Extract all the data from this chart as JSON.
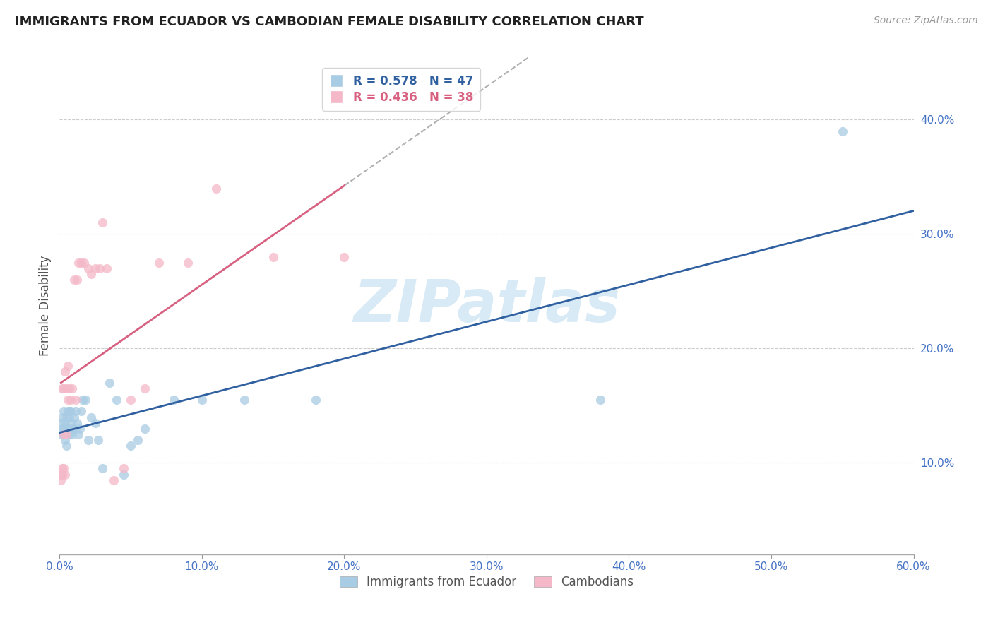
{
  "title": "IMMIGRANTS FROM ECUADOR VS CAMBODIAN FEMALE DISABILITY CORRELATION CHART",
  "source": "Source: ZipAtlas.com",
  "ylabel": "Female Disability",
  "legend_label1": "Immigrants from Ecuador",
  "legend_label2": "Cambodians",
  "R1": 0.578,
  "N1": 47,
  "R2": 0.436,
  "N2": 38,
  "color_ecuador": "#a8cce4",
  "color_cambodian": "#f4b8c8",
  "color_ecuador_line": "#3060a0",
  "color_cambodian_line": "#d86080",
  "ecuador_x": [
    0.001,
    0.001,
    0.002,
    0.002,
    0.003,
    0.003,
    0.003,
    0.004,
    0.004,
    0.005,
    0.005,
    0.005,
    0.006,
    0.006,
    0.007,
    0.007,
    0.007,
    0.008,
    0.008,
    0.009,
    0.009,
    0.01,
    0.01,
    0.011,
    0.012,
    0.013,
    0.014,
    0.015,
    0.016,
    0.018,
    0.02,
    0.022,
    0.025,
    0.027,
    0.03,
    0.035,
    0.04,
    0.045,
    0.05,
    0.055,
    0.06,
    0.08,
    0.1,
    0.13,
    0.18,
    0.38,
    0.55
  ],
  "ecuador_y": [
    0.135,
    0.125,
    0.13,
    0.14,
    0.125,
    0.13,
    0.145,
    0.12,
    0.135,
    0.115,
    0.13,
    0.14,
    0.13,
    0.145,
    0.14,
    0.145,
    0.125,
    0.135,
    0.145,
    0.125,
    0.13,
    0.13,
    0.14,
    0.145,
    0.135,
    0.125,
    0.13,
    0.145,
    0.155,
    0.155,
    0.12,
    0.14,
    0.135,
    0.12,
    0.095,
    0.17,
    0.155,
    0.09,
    0.115,
    0.12,
    0.13,
    0.155,
    0.155,
    0.155,
    0.155,
    0.155,
    0.39
  ],
  "cambodian_x": [
    0.001,
    0.001,
    0.002,
    0.002,
    0.002,
    0.003,
    0.003,
    0.003,
    0.004,
    0.004,
    0.005,
    0.005,
    0.006,
    0.006,
    0.007,
    0.008,
    0.009,
    0.01,
    0.011,
    0.012,
    0.013,
    0.015,
    0.017,
    0.02,
    0.022,
    0.025,
    0.028,
    0.03,
    0.033,
    0.038,
    0.045,
    0.05,
    0.06,
    0.07,
    0.09,
    0.11,
    0.15,
    0.2
  ],
  "cambodian_y": [
    0.085,
    0.09,
    0.09,
    0.095,
    0.165,
    0.095,
    0.125,
    0.165,
    0.09,
    0.18,
    0.125,
    0.165,
    0.155,
    0.185,
    0.165,
    0.155,
    0.165,
    0.26,
    0.155,
    0.26,
    0.275,
    0.275,
    0.275,
    0.27,
    0.265,
    0.27,
    0.27,
    0.31,
    0.27,
    0.085,
    0.095,
    0.155,
    0.165,
    0.275,
    0.275,
    0.34,
    0.28,
    0.28
  ],
  "xlim": [
    0.0,
    0.6
  ],
  "ylim": [
    0.02,
    0.455
  ],
  "yticks_right": [
    0.1,
    0.2,
    0.3,
    0.4
  ],
  "ytick_labels_right": [
    "10.0%",
    "20.0%",
    "30.0%",
    "40.0%"
  ],
  "xticks": [
    0.0,
    0.1,
    0.2,
    0.3,
    0.4,
    0.5,
    0.6
  ],
  "xtick_labels": [
    "0.0%",
    "10.0%",
    "20.0%",
    "30.0%",
    "40.0%",
    "50.0%",
    "60.0%"
  ],
  "grid_yticks": [
    0.1,
    0.2,
    0.3,
    0.4
  ],
  "watermark_text": "ZIPatlas",
  "background_color": "#ffffff",
  "grid_color": "#cccccc",
  "tick_color": "#4472c4",
  "title_fontsize": 13,
  "source_fontsize": 10,
  "axis_fontsize": 11,
  "legend_fontsize": 12,
  "marker_size": 90
}
